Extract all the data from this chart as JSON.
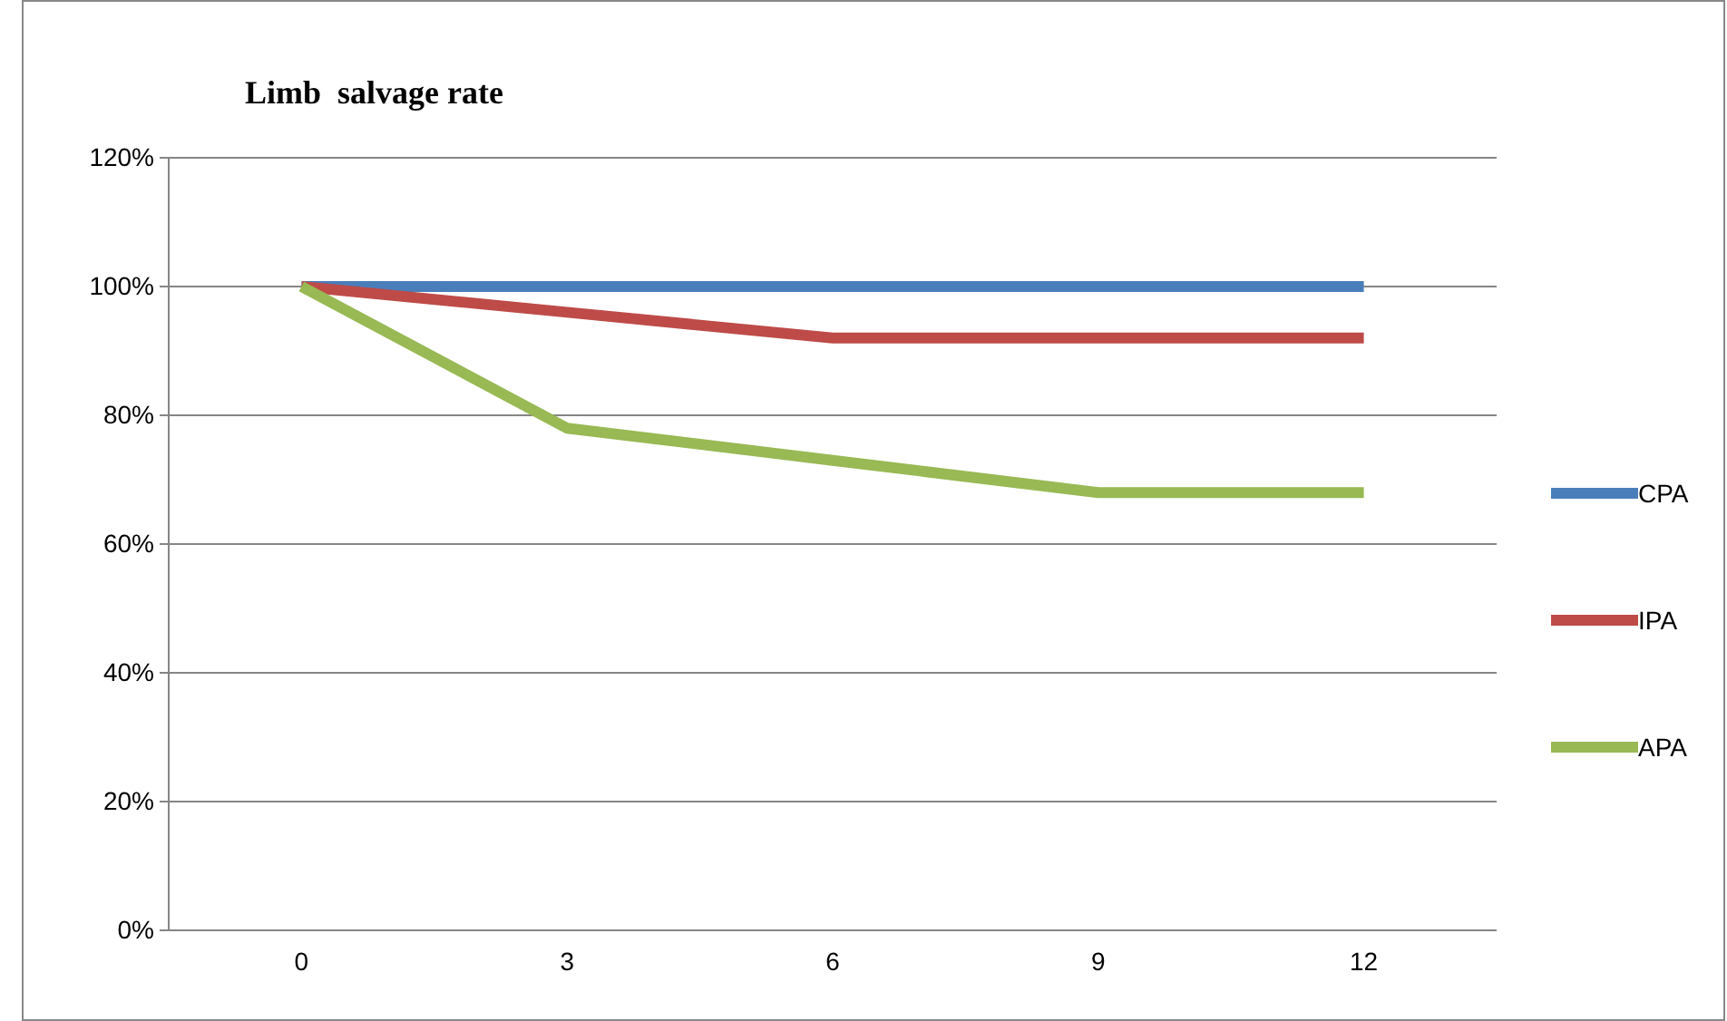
{
  "chart_data": {
    "type": "line",
    "title": "Limb  salvage rate",
    "categories": [
      "0",
      "3",
      "6",
      "9",
      "12"
    ],
    "series": [
      {
        "name": "CPA",
        "color": "#4a7ebb",
        "values": [
          100,
          100,
          100,
          100,
          100
        ]
      },
      {
        "name": "IPA",
        "color": "#be4b48",
        "values": [
          100,
          96,
          92,
          92,
          92
        ]
      },
      {
        "name": "APA",
        "color": "#98b954",
        "values": [
          100,
          78,
          73,
          68,
          68
        ]
      }
    ],
    "ylim": [
      0,
      120
    ],
    "yticks": [
      {
        "value": 0,
        "label": "0%"
      },
      {
        "value": 20,
        "label": "20%"
      },
      {
        "value": 40,
        "label": "40%"
      },
      {
        "value": 60,
        "label": "60%"
      },
      {
        "value": 80,
        "label": "80%"
      },
      {
        "value": 100,
        "label": "100%"
      },
      {
        "value": 120,
        "label": "120%"
      }
    ],
    "grid": "y",
    "legend": "right",
    "marker": "none",
    "line_style": "solid"
  }
}
